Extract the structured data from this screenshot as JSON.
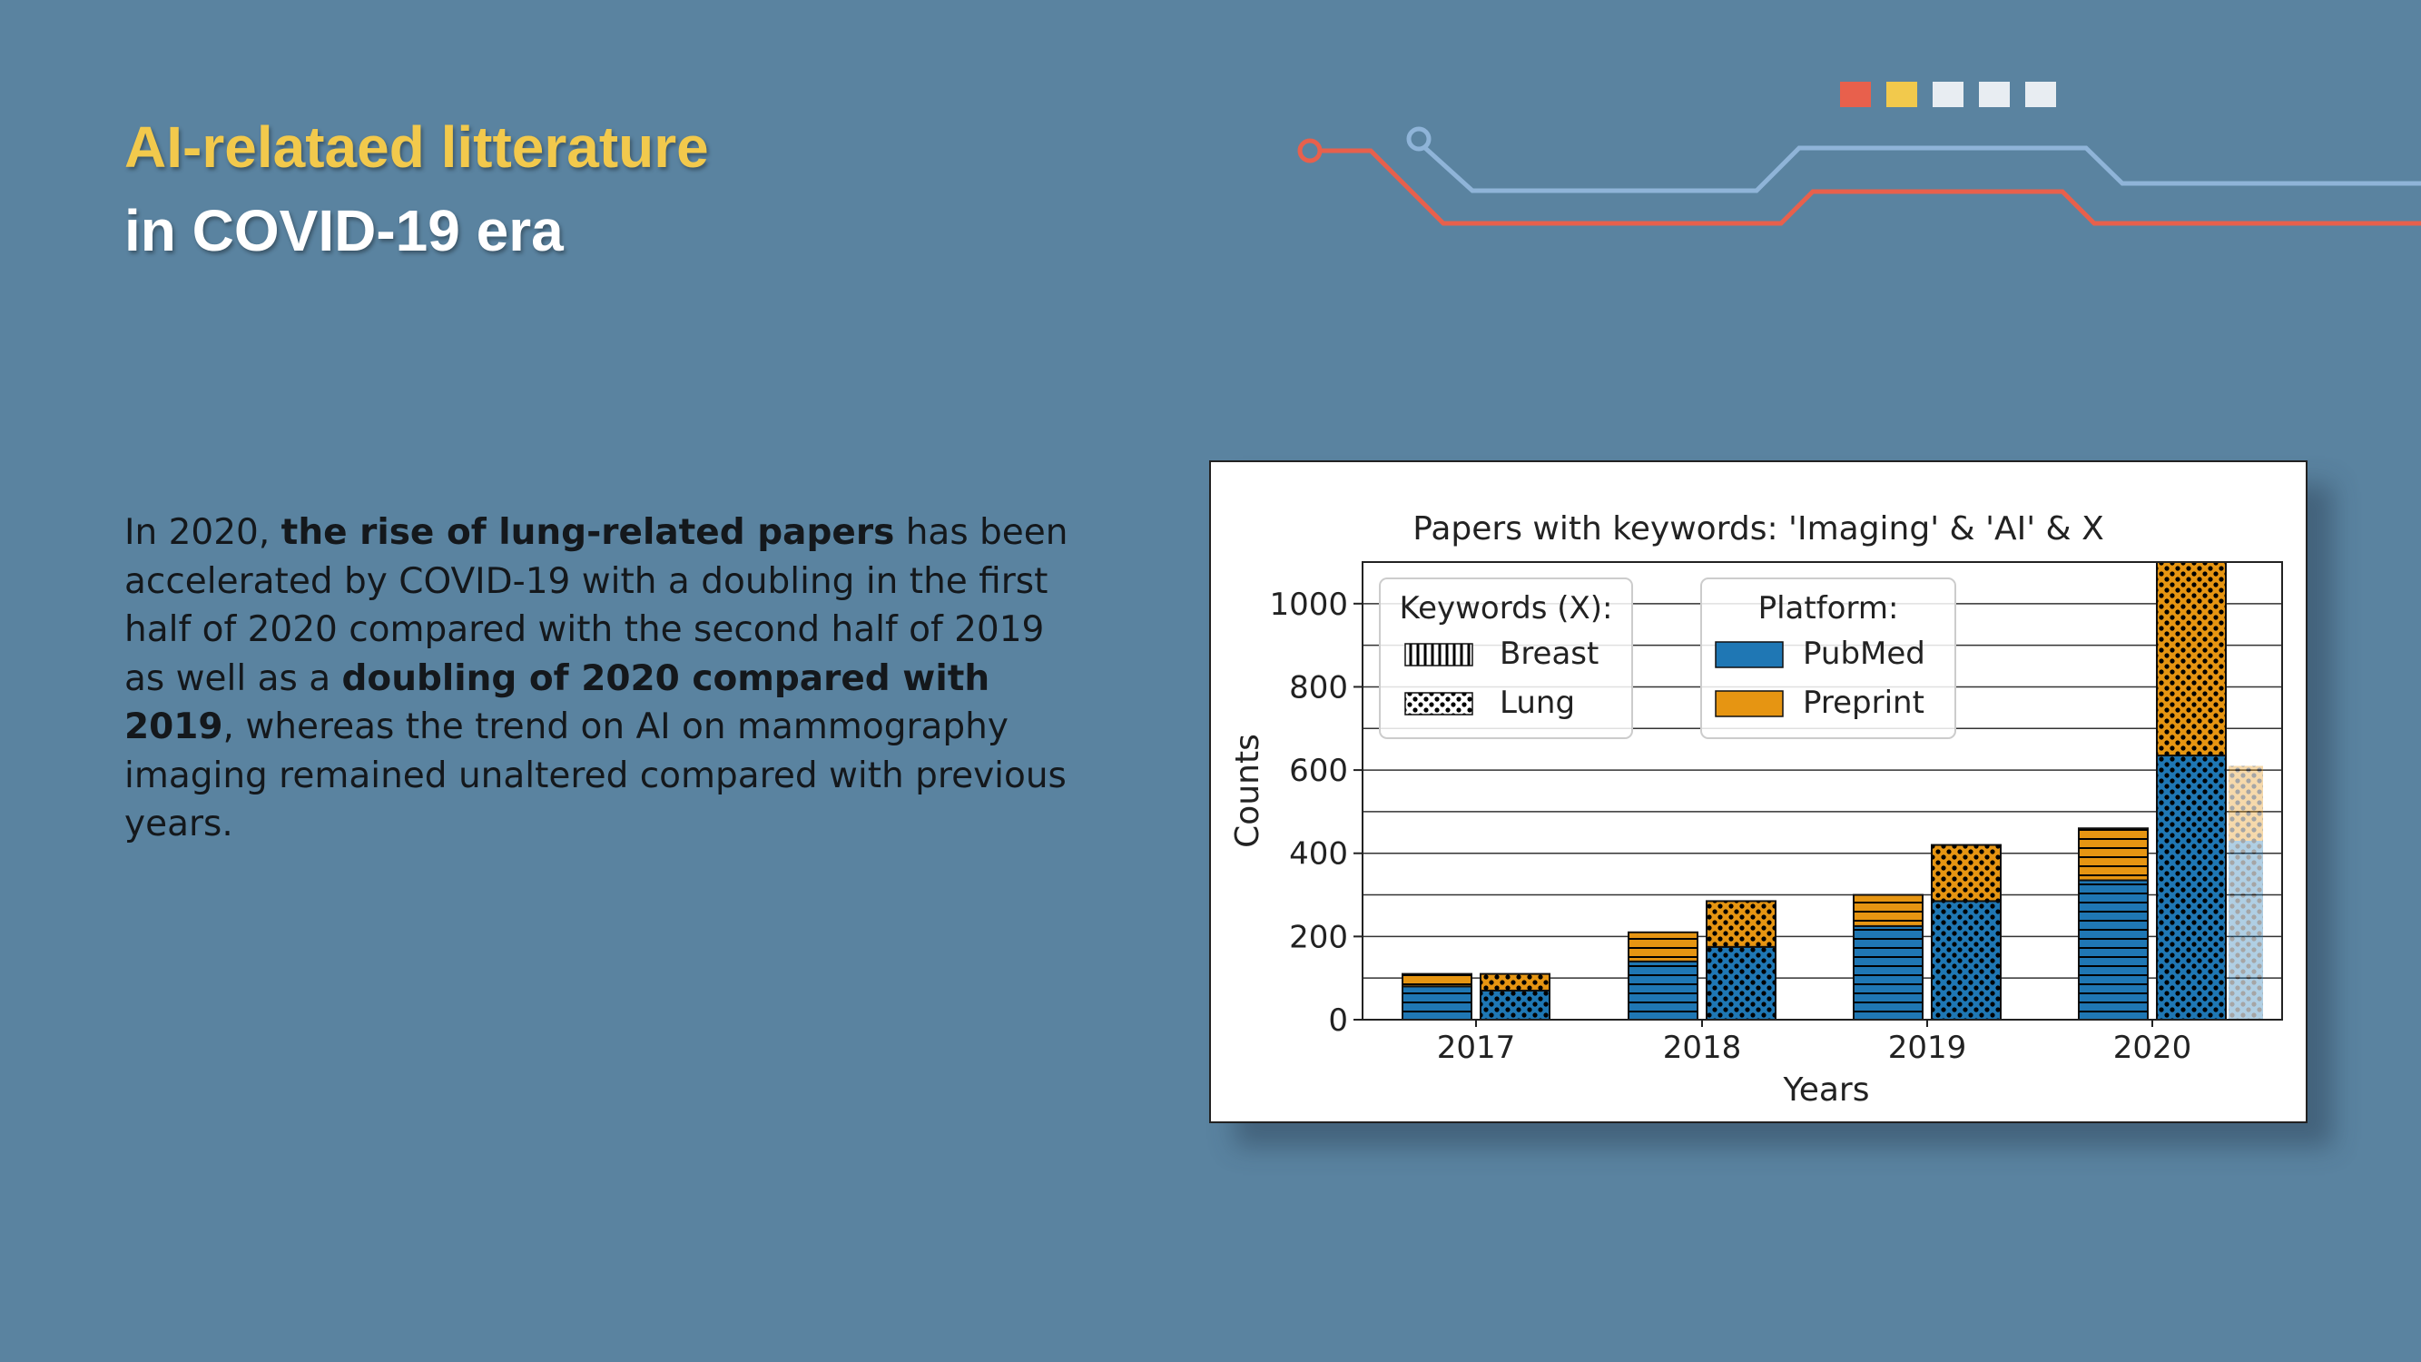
{
  "slide": {
    "title_line1": "AI-relataed litterature",
    "title_line2": "in COVID-19 era",
    "paragraph": {
      "t1": "In 2020, ",
      "b1": "the rise of lung-related papers",
      "t2": " has been accelerated by COVID-19 with a doubling in the first half of 2020 compared with the second half of 2019 as well as a ",
      "b2": "doubling of 2020 compared with 2019",
      "t3": ", whereas the trend on AI on mammography imaging remained unaltered compared with previous years."
    }
  },
  "decoration": {
    "square_colors": [
      "#e8604c",
      "#f2c94c",
      "#e8edf2",
      "#e8edf2",
      "#e8edf2"
    ],
    "line_colors": [
      "#e8604c",
      "#8fb4d8"
    ]
  },
  "chart_data": {
    "type": "bar",
    "title": "Papers with keywords: 'Imaging' & 'AI' & X",
    "xlabel": "Years",
    "ylabel": "Counts",
    "categories": [
      "2017",
      "2018",
      "2019",
      "2020"
    ],
    "ylim": [
      0,
      1100
    ],
    "yticks": [
      "0",
      "200",
      "400",
      "600",
      "800",
      "1000"
    ],
    "grid": true,
    "colors": {
      "PubMed": "#1f77b4",
      "Preprint": "#e69512"
    },
    "legend_keywords": {
      "title": "Keywords (X):",
      "entries": [
        "Breast",
        "Lung"
      ]
    },
    "legend_platform": {
      "title": "Platform:",
      "entries": [
        "PubMed",
        "Preprint"
      ]
    },
    "series": [
      {
        "name": "Breast",
        "pubmed": [
          80,
          140,
          225,
          335
        ],
        "preprint": [
          30,
          70,
          75,
          125
        ]
      },
      {
        "name": "Lung",
        "pubmed": [
          70,
          175,
          285,
          635
        ],
        "preprint": [
          40,
          110,
          135,
          465
        ]
      }
    ],
    "partial_2020_lung": {
      "pubmed": 430,
      "preprint": 180
    }
  }
}
